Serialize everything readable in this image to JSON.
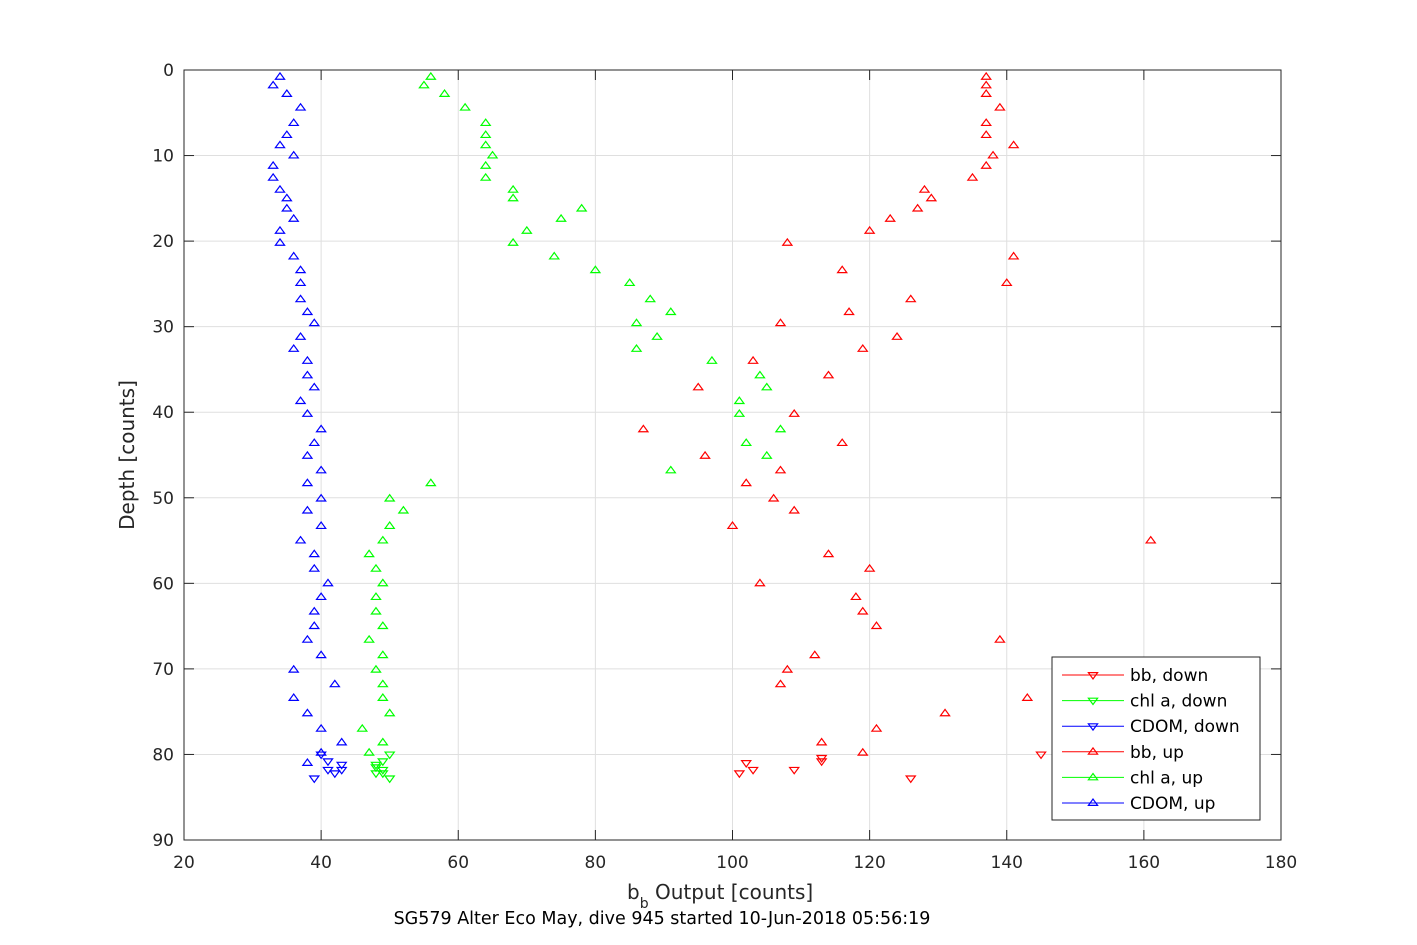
{
  "chart_data": {
    "type": "scatter",
    "caption": "SG579 Alter Eco May, dive 945 started 10-Jun-2018 05:56:19",
    "xlabel_main": "b",
    "xlabel_sub": "b",
    "xlabel_rest": " Output [counts]",
    "ylabel": "Depth [counts]",
    "xlim": [
      20,
      180
    ],
    "ylim": [
      0,
      90
    ],
    "y_reversed": true,
    "grid": true,
    "legend_position": "bottom-right",
    "x_ticks": [
      "20",
      "40",
      "60",
      "80",
      "100",
      "120",
      "140",
      "160",
      "180"
    ],
    "y_ticks": [
      "0",
      "10",
      "20",
      "30",
      "40",
      "50",
      "60",
      "70",
      "80",
      "90"
    ],
    "colors": {
      "bb": "#ff0000",
      "chl": "#00ff00",
      "cdom": "#0000ff",
      "axis": "#262626",
      "grid": "#dfdfdf"
    },
    "series": [
      {
        "name": "bb, down",
        "color": "#ff0000",
        "marker": "triangle-down",
        "points": [
          [
            145,
            80.0
          ],
          [
            101,
            82.2
          ],
          [
            103,
            81.8
          ],
          [
            109,
            81.8
          ],
          [
            113,
            80.8
          ],
          [
            113,
            80.4
          ],
          [
            102,
            81.0
          ],
          [
            126,
            82.8
          ]
        ]
      },
      {
        "name": "chl a, down",
        "color": "#00ff00",
        "marker": "triangle-down",
        "points": [
          [
            50,
            80.0
          ],
          [
            49,
            80.8
          ],
          [
            48,
            81.2
          ],
          [
            48,
            82.2
          ],
          [
            49,
            81.8
          ],
          [
            49,
            82.2
          ],
          [
            50,
            82.8
          ],
          [
            48,
            81.5
          ]
        ]
      },
      {
        "name": "CDOM, down",
        "color": "#0000ff",
        "marker": "triangle-down",
        "points": [
          [
            40,
            80.0
          ],
          [
            41,
            80.8
          ],
          [
            43,
            81.2
          ],
          [
            42,
            82.2
          ],
          [
            41,
            81.8
          ],
          [
            39,
            82.8
          ],
          [
            43,
            81.8
          ]
        ]
      },
      {
        "name": "bb, up",
        "color": "#ff0000",
        "marker": "triangle-up",
        "points": [
          [
            137,
            0.8
          ],
          [
            137,
            1.8
          ],
          [
            137,
            2.8
          ],
          [
            139,
            4.4
          ],
          [
            137,
            6.2
          ],
          [
            137,
            7.6
          ],
          [
            141,
            8.8
          ],
          [
            138,
            10.0
          ],
          [
            137,
            11.2
          ],
          [
            135,
            12.6
          ],
          [
            128,
            14.0
          ],
          [
            129,
            15.0
          ],
          [
            127,
            16.2
          ],
          [
            123,
            17.4
          ],
          [
            120,
            18.8
          ],
          [
            108,
            20.2
          ],
          [
            141,
            21.8
          ],
          [
            116,
            23.4
          ],
          [
            140,
            24.9
          ],
          [
            126,
            26.8
          ],
          [
            117,
            28.3
          ],
          [
            107,
            29.6
          ],
          [
            124,
            31.2
          ],
          [
            119,
            32.6
          ],
          [
            103,
            34.0
          ],
          [
            114,
            35.7
          ],
          [
            95,
            37.1
          ],
          [
            109,
            40.2
          ],
          [
            87,
            42.0
          ],
          [
            116,
            43.6
          ],
          [
            96,
            45.1
          ],
          [
            107,
            46.8
          ],
          [
            102,
            48.3
          ],
          [
            106,
            50.1
          ],
          [
            109,
            51.5
          ],
          [
            100,
            53.3
          ],
          [
            161,
            55.0
          ],
          [
            114,
            56.6
          ],
          [
            120,
            58.3
          ],
          [
            104,
            60.0
          ],
          [
            118,
            61.6
          ],
          [
            119,
            63.3
          ],
          [
            121,
            65.0
          ],
          [
            139,
            66.6
          ],
          [
            112,
            68.4
          ],
          [
            108,
            70.1
          ],
          [
            107,
            71.8
          ],
          [
            143,
            73.4
          ],
          [
            131,
            75.2
          ],
          [
            121,
            77.0
          ],
          [
            113,
            78.6
          ],
          [
            119,
            79.8
          ]
        ]
      },
      {
        "name": "chl a, up",
        "color": "#00ff00",
        "marker": "triangle-up",
        "points": [
          [
            56,
            0.8
          ],
          [
            55,
            1.8
          ],
          [
            58,
            2.8
          ],
          [
            61,
            4.4
          ],
          [
            64,
            6.2
          ],
          [
            64,
            7.6
          ],
          [
            64,
            8.8
          ],
          [
            65,
            10.0
          ],
          [
            64,
            11.2
          ],
          [
            64,
            12.6
          ],
          [
            68,
            14.0
          ],
          [
            68,
            15.0
          ],
          [
            78,
            16.2
          ],
          [
            75,
            17.4
          ],
          [
            70,
            18.8
          ],
          [
            68,
            20.2
          ],
          [
            74,
            21.8
          ],
          [
            80,
            23.4
          ],
          [
            85,
            24.9
          ],
          [
            88,
            26.8
          ],
          [
            91,
            28.3
          ],
          [
            86,
            29.6
          ],
          [
            89,
            31.2
          ],
          [
            86,
            32.6
          ],
          [
            97,
            34.0
          ],
          [
            104,
            35.7
          ],
          [
            105,
            37.1
          ],
          [
            101,
            38.7
          ],
          [
            101,
            40.2
          ],
          [
            107,
            42.0
          ],
          [
            102,
            43.6
          ],
          [
            105,
            45.1
          ],
          [
            91,
            46.8
          ],
          [
            56,
            48.3
          ],
          [
            50,
            50.1
          ],
          [
            52,
            51.5
          ],
          [
            50,
            53.3
          ],
          [
            49,
            55.0
          ],
          [
            47,
            56.6
          ],
          [
            48,
            58.3
          ],
          [
            49,
            60.0
          ],
          [
            48,
            61.6
          ],
          [
            48,
            63.3
          ],
          [
            49,
            65.0
          ],
          [
            47,
            66.6
          ],
          [
            49,
            68.4
          ],
          [
            48,
            70.1
          ],
          [
            49,
            71.8
          ],
          [
            49,
            73.4
          ],
          [
            50,
            75.2
          ],
          [
            46,
            77.0
          ],
          [
            49,
            78.6
          ],
          [
            47,
            79.8
          ]
        ]
      },
      {
        "name": "CDOM, up",
        "color": "#0000ff",
        "marker": "triangle-up",
        "points": [
          [
            34,
            0.8
          ],
          [
            33,
            1.8
          ],
          [
            35,
            2.8
          ],
          [
            37,
            4.4
          ],
          [
            36,
            6.2
          ],
          [
            35,
            7.6
          ],
          [
            34,
            8.8
          ],
          [
            36,
            10.0
          ],
          [
            33,
            11.2
          ],
          [
            33,
            12.6
          ],
          [
            34,
            14.0
          ],
          [
            35,
            15.0
          ],
          [
            35,
            16.2
          ],
          [
            36,
            17.4
          ],
          [
            34,
            18.8
          ],
          [
            34,
            20.2
          ],
          [
            36,
            21.8
          ],
          [
            37,
            23.4
          ],
          [
            37,
            24.9
          ],
          [
            37,
            26.8
          ],
          [
            38,
            28.3
          ],
          [
            39,
            29.6
          ],
          [
            37,
            31.2
          ],
          [
            36,
            32.6
          ],
          [
            38,
            34.0
          ],
          [
            38,
            35.7
          ],
          [
            39,
            37.1
          ],
          [
            37,
            38.7
          ],
          [
            38,
            40.2
          ],
          [
            40,
            42.0
          ],
          [
            39,
            43.6
          ],
          [
            38,
            45.1
          ],
          [
            40,
            46.8
          ],
          [
            38,
            48.3
          ],
          [
            40,
            50.1
          ],
          [
            38,
            51.5
          ],
          [
            40,
            53.3
          ],
          [
            37,
            55.0
          ],
          [
            39,
            56.6
          ],
          [
            39,
            58.3
          ],
          [
            41,
            60.0
          ],
          [
            40,
            61.6
          ],
          [
            39,
            63.3
          ],
          [
            39,
            65.0
          ],
          [
            38,
            66.6
          ],
          [
            40,
            68.4
          ],
          [
            36,
            70.1
          ],
          [
            42,
            71.8
          ],
          [
            36,
            73.4
          ],
          [
            38,
            75.2
          ],
          [
            40,
            77.0
          ],
          [
            43,
            78.6
          ],
          [
            40,
            79.8
          ],
          [
            38,
            81.0
          ]
        ]
      }
    ]
  }
}
